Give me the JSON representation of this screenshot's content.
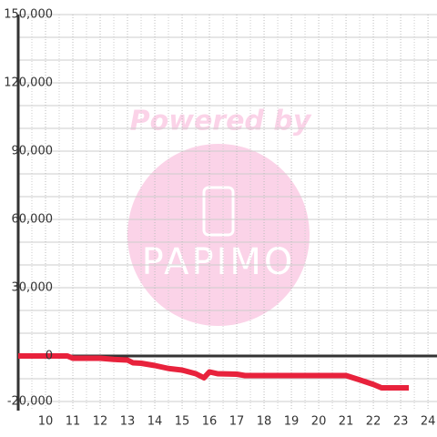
{
  "chart_data": {
    "type": "line",
    "watermark": {
      "title": "Powered by",
      "logo": "PAPIMO"
    },
    "x": [
      9,
      10.8,
      11,
      12,
      12.5,
      13,
      13.2,
      13.5,
      14,
      14.5,
      15,
      15.5,
      15.8,
      16,
      16.3,
      17,
      17.3,
      18,
      19,
      20,
      21,
      21.5,
      22,
      22.3,
      23.3
    ],
    "series": [
      {
        "color": "#e8223c",
        "values": [
          0,
          0,
          -1000,
          -1000,
          -1500,
          -1800,
          -3000,
          -3200,
          -4200,
          -5500,
          -6200,
          -7800,
          -9600,
          -7000,
          -7800,
          -8000,
          -8600,
          -8600,
          -8600,
          -8600,
          -8600,
          -10500,
          -12500,
          -14000,
          -14000
        ]
      }
    ],
    "xlim": [
      9,
      24.33
    ],
    "xticks": [
      10,
      11,
      12,
      13,
      14,
      15,
      16,
      17,
      18,
      19,
      20,
      21,
      22,
      23,
      24
    ],
    "minor_xticks": [
      9.5,
      10.5,
      11.5,
      12.5,
      13.5,
      14.5,
      15.5,
      16.5,
      17.5,
      18.5,
      19.5,
      20.5,
      21.5,
      22.5,
      23.5
    ],
    "ylim": [
      -24000,
      150000
    ],
    "yticks": [
      {
        "value": -20000,
        "label": "-20,000"
      },
      0,
      {
        "value": 30000,
        "label": "30,000"
      },
      {
        "value": 60000,
        "label": "60,000"
      },
      {
        "value": 90000,
        "label": "90,000"
      },
      {
        "value": 120000,
        "label": "120,000"
      },
      {
        "value": 150000,
        "label": "150,000"
      }
    ],
    "minor_yticks": [
      -10000,
      10000,
      20000,
      40000,
      50000,
      70000,
      80000,
      100000,
      110000,
      130000,
      140000
    ],
    "grid": true
  }
}
